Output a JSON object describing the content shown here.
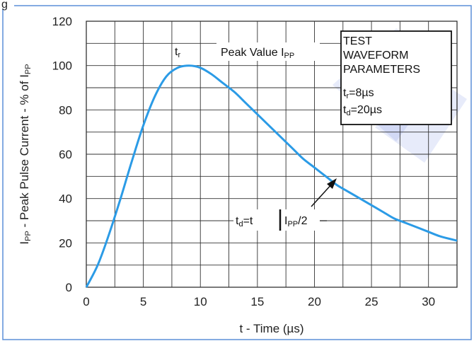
{
  "chart_data": {
    "type": "line",
    "title": "",
    "xlabel": "t - Time (µs)",
    "ylabel": {
      "main": "I",
      "sub1": "PP",
      "mid": " - Peak Pulse Current - % of I",
      "sub2": "PP"
    },
    "xlim": [
      0,
      32.5
    ],
    "ylim": [
      0,
      120
    ],
    "x_ticks": [
      "0",
      "5",
      "10",
      "15",
      "20",
      "25",
      "30"
    ],
    "y_ticks": [
      "0",
      "20",
      "40",
      "60",
      "80",
      "100",
      "120"
    ],
    "grid": true,
    "series": [
      {
        "color": "#2b9be6",
        "x": [
          0,
          1,
          2,
          3,
          4,
          5,
          6,
          7,
          8,
          9,
          10,
          11,
          12,
          13,
          14,
          15,
          16,
          17,
          18,
          19,
          20,
          21,
          22,
          23,
          24,
          25,
          26,
          27,
          28,
          29,
          30,
          31,
          32.5
        ],
        "y": [
          0,
          10,
          24,
          40,
          57,
          73,
          86,
          95,
          99,
          100,
          99,
          96,
          92,
          88,
          83,
          78,
          73,
          68,
          63,
          58,
          54,
          50,
          46,
          43,
          40,
          37,
          34,
          31,
          29,
          27,
          25,
          23,
          21
        ]
      }
    ],
    "annotations": {
      "tr": {
        "main": "t",
        "sub": "r"
      },
      "peak": {
        "main": "Peak Value I",
        "sub": "PP"
      },
      "td": {
        "t": "t",
        "d": "d",
        "eq": "=t",
        "i": "I",
        "pp": "PP",
        "tail": "/2"
      },
      "box": {
        "line1": "TEST",
        "line2": "WAVEFORM",
        "line3": "PARAMETERS",
        "line4": {
          "main": "t",
          "sub": "r",
          "rest": "=8µs"
        },
        "line5": {
          "main": "t",
          "sub": "d",
          "rest": "=20µs"
        }
      }
    },
    "corner_fragment": "g"
  }
}
